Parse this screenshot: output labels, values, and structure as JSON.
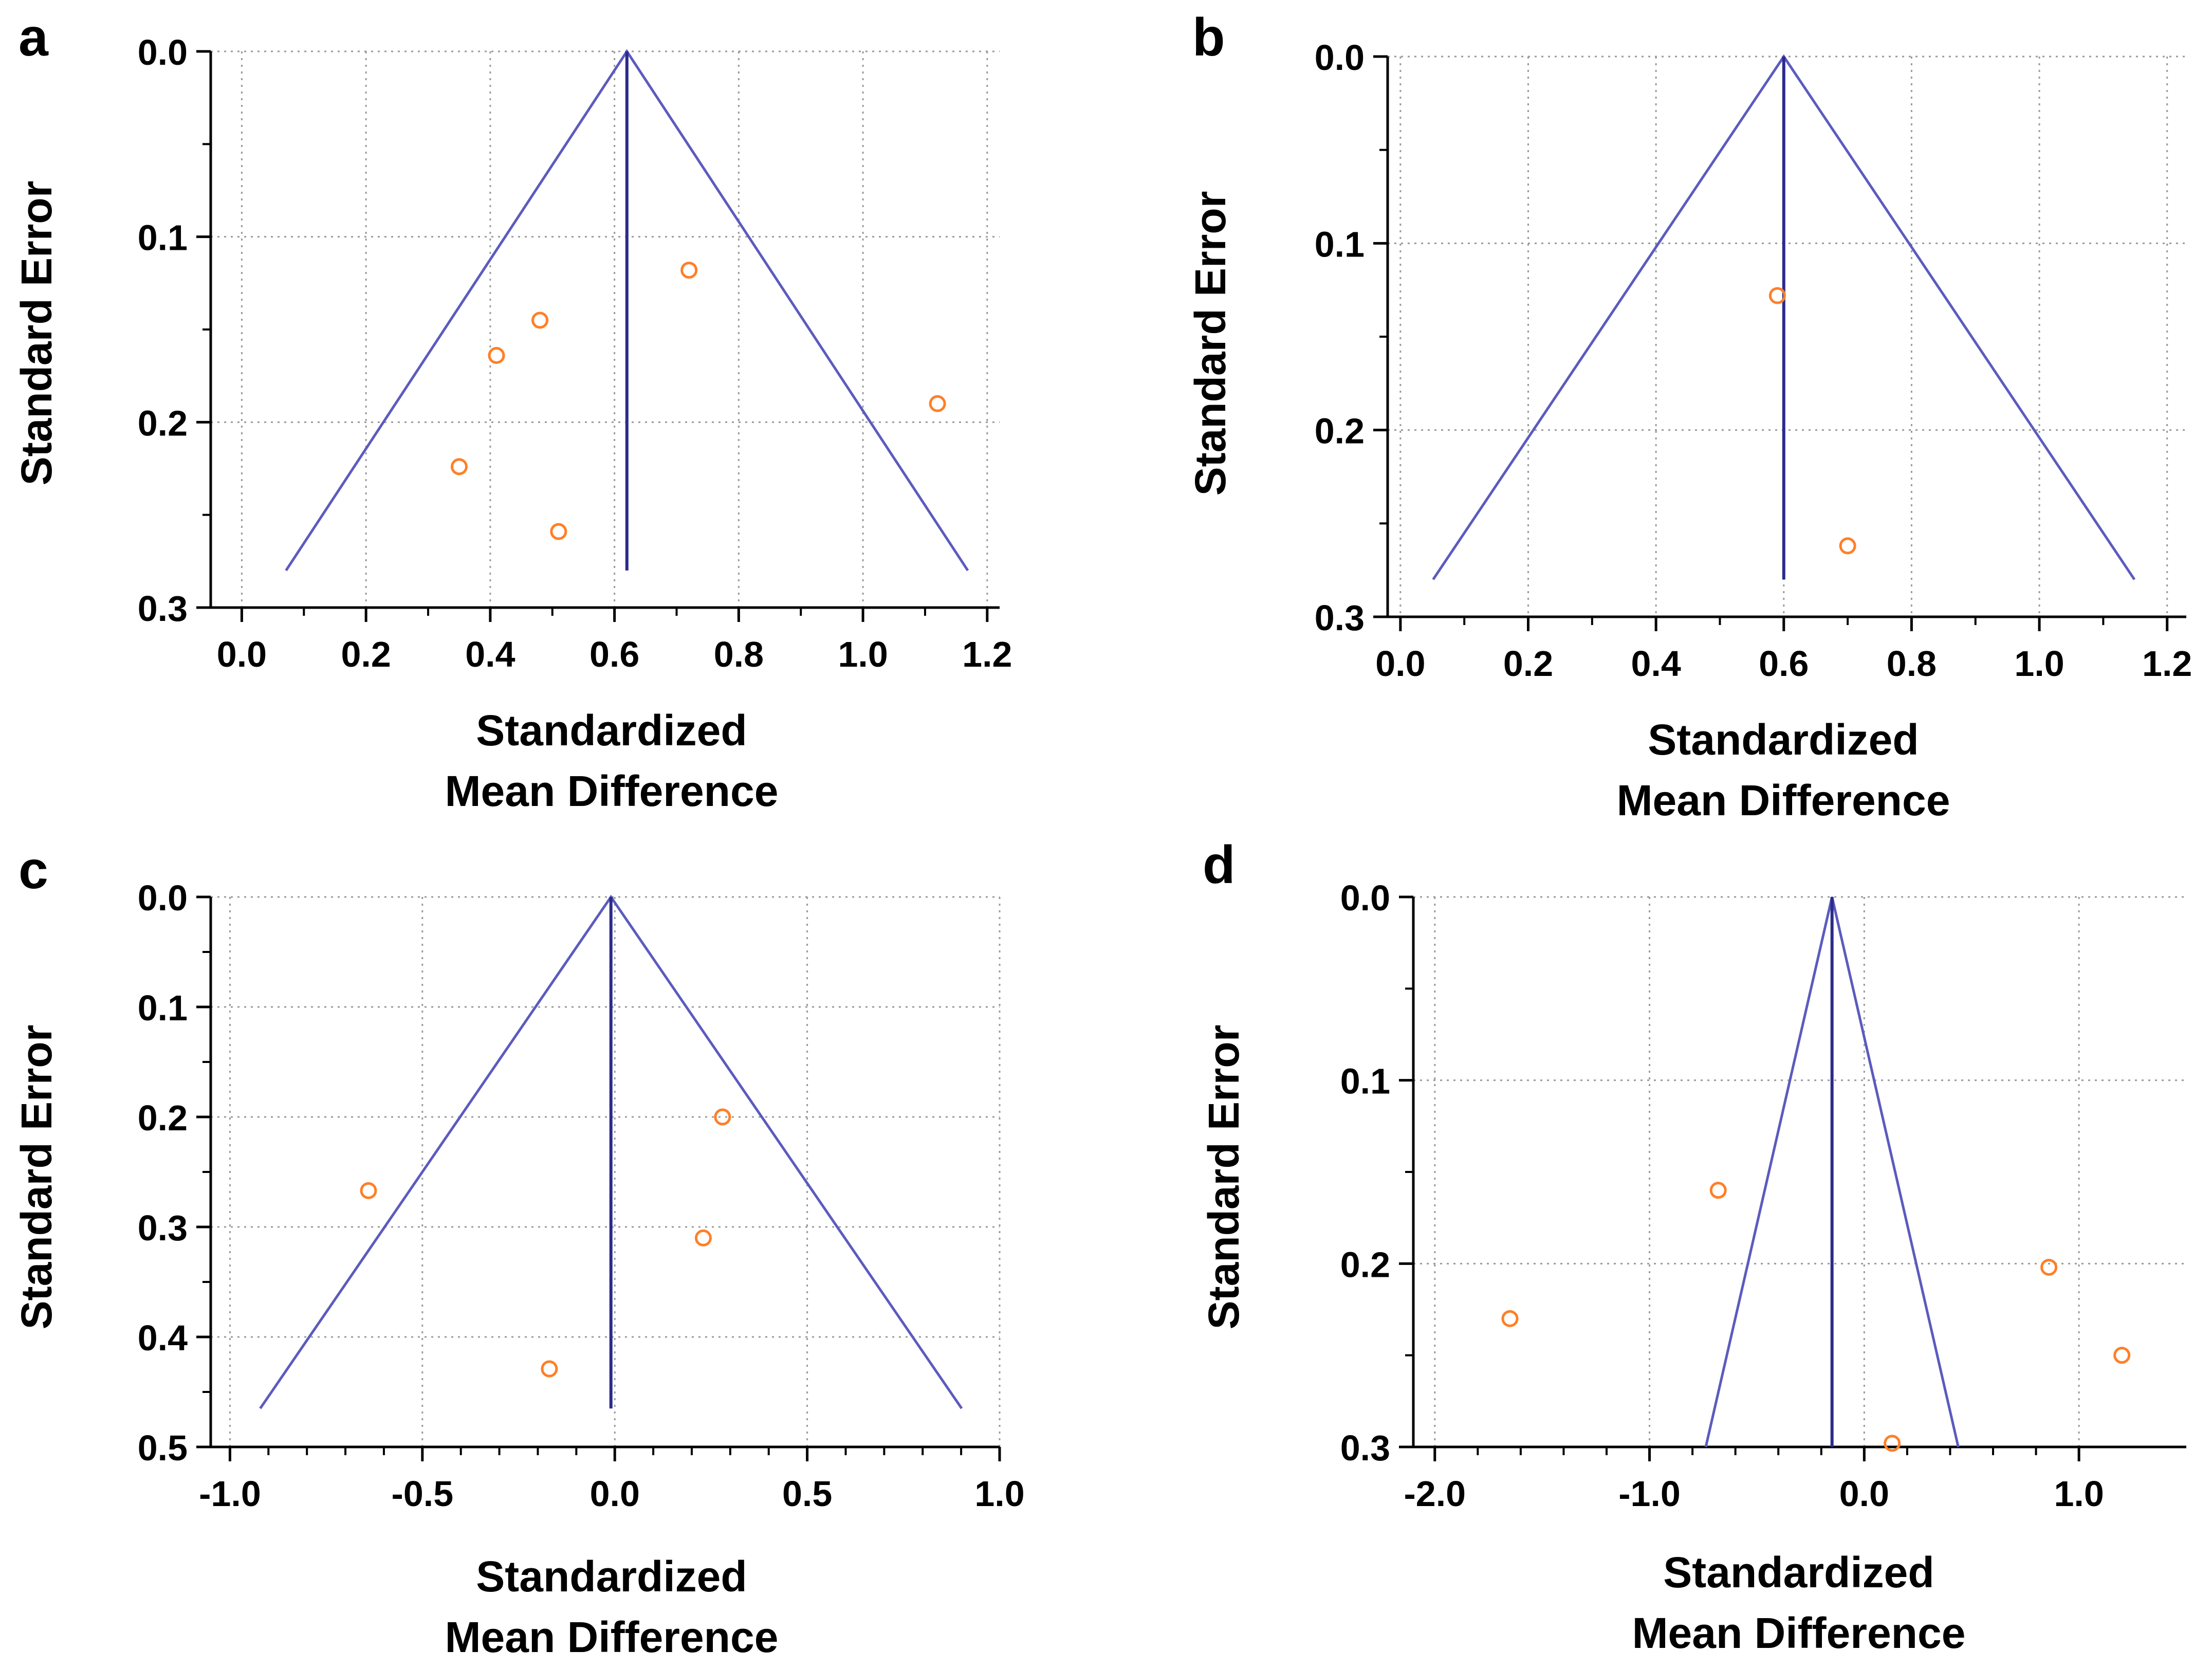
{
  "colors": {
    "funnel": "#5b5bbe",
    "center_line": "#2b2b8c",
    "point": "#ff7f27",
    "grid": "#9a9a9a"
  },
  "chart_data": [
    {
      "type": "scatter",
      "subtype": "funnel",
      "panel": "a",
      "xlabel": [
        "Standardized",
        "Mean Difference"
      ],
      "ylabel": "Standard Error",
      "xlim": [
        -0.05,
        1.22
      ],
      "ylim": [
        0.0,
        0.3
      ],
      "y_inverted": true,
      "x_ticks": [
        "0.0",
        "0.2",
        "0.4",
        "0.6",
        "0.8",
        "1.0",
        "1.2"
      ],
      "x_tick_values": [
        0.0,
        0.2,
        0.4,
        0.6,
        0.8,
        1.0,
        1.2
      ],
      "y_ticks": [
        "0.0",
        "0.1",
        "0.2",
        "0.3"
      ],
      "y_tick_values": [
        0.0,
        0.1,
        0.2,
        0.3
      ],
      "pooled_effect": 0.62,
      "funnel_max_se": 0.28,
      "points": [
        {
          "x": 0.72,
          "y": 0.118
        },
        {
          "x": 0.48,
          "y": 0.145
        },
        {
          "x": 0.41,
          "y": 0.164
        },
        {
          "x": 1.12,
          "y": 0.19
        },
        {
          "x": 0.35,
          "y": 0.224
        },
        {
          "x": 0.51,
          "y": 0.259
        }
      ]
    },
    {
      "type": "scatter",
      "subtype": "funnel",
      "panel": "b",
      "xlabel": [
        "Standardized",
        "Mean Difference"
      ],
      "ylabel": "Standard Error",
      "xlim": [
        -0.02,
        1.23
      ],
      "ylim": [
        0.0,
        0.3
      ],
      "y_inverted": true,
      "x_ticks": [
        "0.0",
        "0.2",
        "0.4",
        "0.6",
        "0.8",
        "1.0",
        "1.2"
      ],
      "x_tick_values": [
        0.0,
        0.2,
        0.4,
        0.6,
        0.8,
        1.0,
        1.2
      ],
      "y_ticks": [
        "0.0",
        "0.1",
        "0.2",
        "0.3"
      ],
      "y_tick_values": [
        0.0,
        0.1,
        0.2,
        0.3
      ],
      "pooled_effect": 0.6,
      "funnel_max_se": 0.28,
      "points": [
        {
          "x": 0.59,
          "y": 0.128
        },
        {
          "x": 0.7,
          "y": 0.262
        }
      ]
    },
    {
      "type": "scatter",
      "subtype": "funnel",
      "panel": "c",
      "xlabel": [
        "Standardized",
        "Mean Difference"
      ],
      "ylabel": "Standard Error",
      "xlim": [
        -1.05,
        1.0
      ],
      "ylim": [
        0.0,
        0.5
      ],
      "y_inverted": true,
      "x_ticks": [
        "-1.0",
        "-0.5",
        "0.0",
        "0.5",
        "1.0"
      ],
      "x_tick_values": [
        -1.0,
        -0.5,
        0.0,
        0.5,
        1.0
      ],
      "y_ticks": [
        "0.0",
        "0.1",
        "0.2",
        "0.3",
        "0.4",
        "0.5"
      ],
      "y_tick_values": [
        0.0,
        0.1,
        0.2,
        0.3,
        0.4,
        0.5
      ],
      "pooled_effect": -0.01,
      "funnel_max_se": 0.465,
      "points": [
        {
          "x": 0.28,
          "y": 0.2
        },
        {
          "x": -0.64,
          "y": 0.267
        },
        {
          "x": 0.23,
          "y": 0.31
        },
        {
          "x": -0.17,
          "y": 0.429
        }
      ]
    },
    {
      "type": "scatter",
      "subtype": "funnel",
      "panel": "d",
      "xlabel": [
        "Standardized",
        "Mean Difference"
      ],
      "ylabel": "Standard Error",
      "xlim": [
        -2.1,
        1.5
      ],
      "ylim": [
        0.0,
        0.3
      ],
      "y_inverted": true,
      "x_ticks": [
        "-2.0",
        "-1.0",
        "0.0",
        "1.0"
      ],
      "x_tick_values": [
        -2.0,
        -1.0,
        0.0,
        1.0
      ],
      "y_ticks": [
        "0.0",
        "0.1",
        "0.2",
        "0.3"
      ],
      "y_tick_values": [
        0.0,
        0.1,
        0.2,
        0.3
      ],
      "pooled_effect": -0.15,
      "funnel_max_se": 0.3,
      "points": [
        {
          "x": -0.68,
          "y": 0.16
        },
        {
          "x": 0.86,
          "y": 0.202
        },
        {
          "x": -1.65,
          "y": 0.23
        },
        {
          "x": 1.2,
          "y": 0.25
        },
        {
          "x": 0.13,
          "y": 0.298
        }
      ]
    }
  ]
}
